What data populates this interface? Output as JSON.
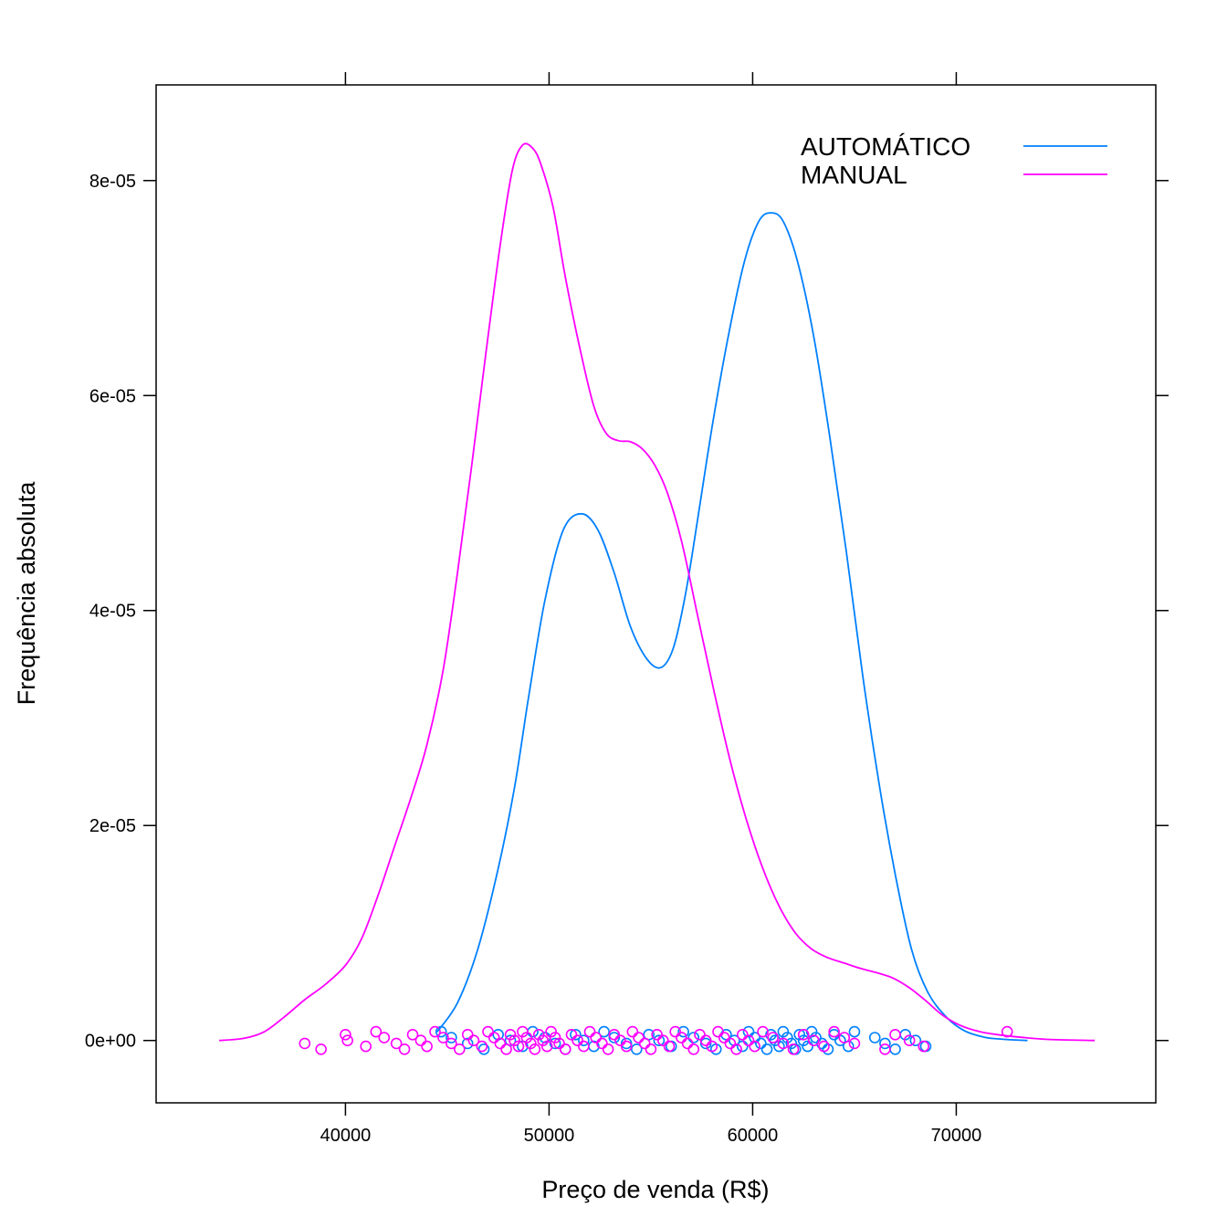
{
  "chart_data": {
    "type": "line",
    "xlabel": "Preço de venda (R$)",
    "ylabel": "Frequência absoluta",
    "xlim": [
      30700,
      79800
    ],
    "ylim": [
      -5.8e-06,
      8.89e-05
    ],
    "x_ticks": [
      40000,
      50000,
      60000,
      70000
    ],
    "x_tick_labels": [
      "40000",
      "50000",
      "60000",
      "70000"
    ],
    "y_ticks": [
      0,
      2e-05,
      4e-05,
      6e-05,
      8e-05
    ],
    "y_tick_labels": [
      "0e+00",
      "2e-05",
      "4e-05",
      "6e-05",
      "8e-05"
    ],
    "legend_position": "top-right",
    "grid": false,
    "series": [
      {
        "name": "AUTOMÁTICO",
        "color": "#0080ff",
        "density": [
          [
            44500,
            8e-07
          ],
          [
            45500,
            3.5e-06
          ],
          [
            46500,
            8.5e-06
          ],
          [
            47500,
            1.6e-05
          ],
          [
            48300,
            2.35e-05
          ],
          [
            49000,
            3.2e-05
          ],
          [
            49800,
            4.1e-05
          ],
          [
            50700,
            4.75e-05
          ],
          [
            51600,
            4.9e-05
          ],
          [
            52400,
            4.75e-05
          ],
          [
            53200,
            4.35e-05
          ],
          [
            54000,
            3.85e-05
          ],
          [
            54800,
            3.55e-05
          ],
          [
            55500,
            3.47e-05
          ],
          [
            56100,
            3.65e-05
          ],
          [
            56700,
            4.15e-05
          ],
          [
            57300,
            4.85e-05
          ],
          [
            58000,
            5.7e-05
          ],
          [
            58800,
            6.55e-05
          ],
          [
            59600,
            7.25e-05
          ],
          [
            60300,
            7.62e-05
          ],
          [
            60900,
            7.7e-05
          ],
          [
            61500,
            7.62e-05
          ],
          [
            62200,
            7.25e-05
          ],
          [
            63000,
            6.55e-05
          ],
          [
            63800,
            5.6e-05
          ],
          [
            64600,
            4.55e-05
          ],
          [
            65400,
            3.4e-05
          ],
          [
            66200,
            2.4e-05
          ],
          [
            67000,
            1.55e-05
          ],
          [
            67800,
            8.5e-06
          ],
          [
            68600,
            4.5e-06
          ],
          [
            69500,
            2.2e-06
          ],
          [
            70400,
            9e-07
          ],
          [
            71400,
            3e-07
          ],
          [
            72400,
            1e-07
          ],
          [
            73500,
            0.0
          ]
        ],
        "rug": [
          44700,
          45200,
          46000,
          46800,
          47500,
          48100,
          48700,
          49200,
          49800,
          50300,
          50800,
          51300,
          51700,
          52200,
          52700,
          53200,
          53800,
          54300,
          54900,
          55400,
          56000,
          56600,
          57100,
          57700,
          58200,
          58700,
          59100,
          59500,
          59800,
          60100,
          60400,
          60700,
          60900,
          61100,
          61300,
          61500,
          61700,
          61900,
          62100,
          62300,
          62500,
          62700,
          62900,
          63100,
          63400,
          63700,
          64000,
          64300,
          64700,
          65000,
          66000,
          66500,
          67000,
          67500,
          68000,
          68500
        ]
      },
      {
        "name": "MANUAL",
        "color": "#ff00ff",
        "density": [
          [
            33800,
            0.0
          ],
          [
            35000,
            2e-07
          ],
          [
            36000,
            8e-07
          ],
          [
            37000,
            2.2e-06
          ],
          [
            38000,
            3.8e-06
          ],
          [
            39000,
            5.2e-06
          ],
          [
            40000,
            7e-06
          ],
          [
            40800,
            9.5e-06
          ],
          [
            41600,
            1.35e-05
          ],
          [
            42400,
            1.8e-05
          ],
          [
            43200,
            2.25e-05
          ],
          [
            44000,
            2.75e-05
          ],
          [
            44800,
            3.45e-05
          ],
          [
            45500,
            4.35e-05
          ],
          [
            46200,
            5.35e-05
          ],
          [
            46900,
            6.4e-05
          ],
          [
            47600,
            7.4e-05
          ],
          [
            48200,
            8.1e-05
          ],
          [
            48700,
            8.33e-05
          ],
          [
            49200,
            8.3e-05
          ],
          [
            49600,
            8.15e-05
          ],
          [
            50200,
            7.75e-05
          ],
          [
            50800,
            7.1e-05
          ],
          [
            51500,
            6.45e-05
          ],
          [
            52200,
            5.9e-05
          ],
          [
            52800,
            5.65e-05
          ],
          [
            53400,
            5.58e-05
          ],
          [
            54000,
            5.57e-05
          ],
          [
            54600,
            5.5e-05
          ],
          [
            55200,
            5.35e-05
          ],
          [
            55800,
            5.1e-05
          ],
          [
            56500,
            4.65e-05
          ],
          [
            57300,
            3.95e-05
          ],
          [
            58100,
            3.25e-05
          ],
          [
            58900,
            2.6e-05
          ],
          [
            59700,
            2.05e-05
          ],
          [
            60500,
            1.6e-05
          ],
          [
            61300,
            1.25e-05
          ],
          [
            62100,
            1e-05
          ],
          [
            62900,
            8.5e-06
          ],
          [
            63700,
            7.7e-06
          ],
          [
            64500,
            7.2e-06
          ],
          [
            65300,
            6.7e-06
          ],
          [
            66100,
            6.3e-06
          ],
          [
            66900,
            5.8e-06
          ],
          [
            67700,
            4.9e-06
          ],
          [
            68500,
            3.7e-06
          ],
          [
            69300,
            2.4e-06
          ],
          [
            70200,
            1.4e-06
          ],
          [
            71200,
            8e-07
          ],
          [
            72200,
            5e-07
          ],
          [
            73200,
            3e-07
          ],
          [
            74500,
            1e-07
          ],
          [
            76800,
            0.0
          ]
        ],
        "rug": [
          38000,
          38800,
          40000,
          40100,
          41000,
          41500,
          41900,
          42500,
          42900,
          43300,
          43700,
          44000,
          44400,
          44800,
          45200,
          45600,
          46000,
          46300,
          46700,
          47000,
          47300,
          47600,
          47900,
          48100,
          48300,
          48500,
          48700,
          48900,
          49100,
          49300,
          49500,
          49700,
          49900,
          50100,
          50300,
          50500,
          50800,
          51100,
          51400,
          51700,
          52000,
          52300,
          52600,
          52900,
          53200,
          53500,
          53800,
          54100,
          54400,
          54700,
          55000,
          55300,
          55600,
          55900,
          56200,
          56500,
          56800,
          57100,
          57400,
          57700,
          58000,
          58300,
          58600,
          58900,
          59200,
          59500,
          59800,
          60100,
          60500,
          61000,
          61500,
          62000,
          62500,
          63000,
          63500,
          64000,
          64500,
          65000,
          66500,
          67000,
          67700,
          68400,
          72500
        ]
      }
    ]
  }
}
